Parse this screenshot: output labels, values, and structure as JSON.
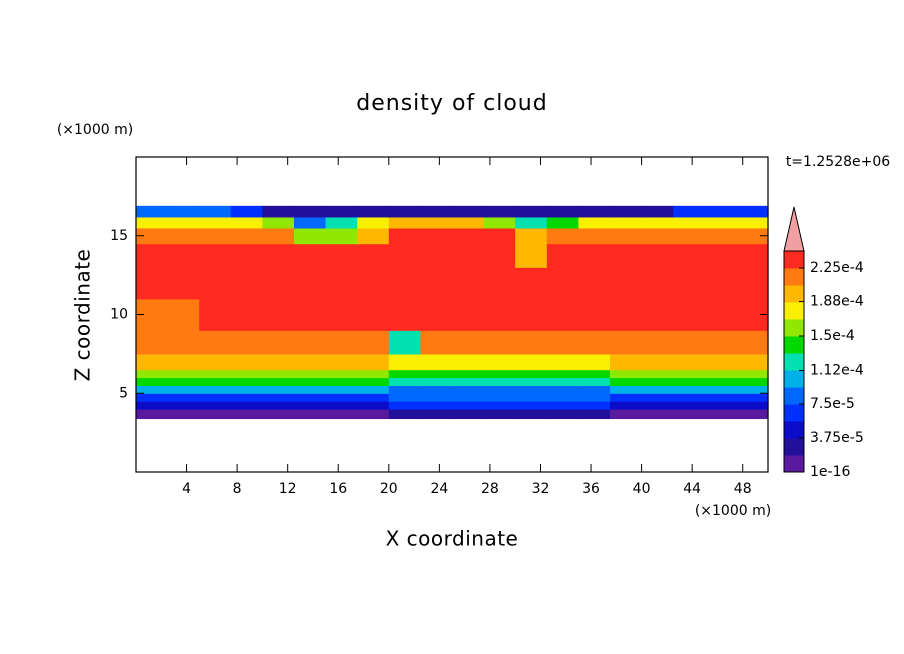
{
  "chart_data": {
    "type": "contour",
    "title": "density of cloud",
    "xlabel": "X coordinate",
    "ylabel": "Z coordinate",
    "x_unit": "(×1000 m)",
    "y_unit": "(×1000 m)",
    "time_label": "t=1.2528e+06",
    "xlim": [
      0,
      50
    ],
    "ylim": [
      0,
      20
    ],
    "xticks": [
      4,
      8,
      12,
      16,
      20,
      24,
      28,
      32,
      36,
      40,
      44,
      48
    ],
    "yticks": [
      5,
      10,
      15
    ],
    "x_edges": [
      0,
      2.5,
      5,
      7.5,
      10,
      12.5,
      15,
      17.5,
      20,
      22.5,
      25,
      27.5,
      30,
      32.5,
      35,
      37.5,
      40,
      42.5,
      45,
      47.5,
      50
    ],
    "z_edges": [
      3.4,
      4,
      4.5,
      5,
      5.5,
      6,
      6.5,
      7.5,
      9,
      11,
      13,
      14.5,
      15.5,
      16.2,
      16.9
    ],
    "values": [
      [
        1e-05,
        1e-05,
        1e-05,
        1e-05,
        1e-05,
        1e-05,
        1e-05,
        1e-05,
        3e-05,
        3e-05,
        3e-05,
        3e-05,
        3e-05,
        3e-05,
        3e-05,
        1e-05,
        1e-05,
        1e-05,
        1e-05,
        1e-05
      ],
      [
        4e-05,
        4e-05,
        4e-05,
        4e-05,
        4e-05,
        4e-05,
        4e-05,
        4e-05,
        6e-05,
        6e-05,
        6e-05,
        6e-05,
        6e-05,
        6e-05,
        6e-05,
        4e-05,
        4e-05,
        4e-05,
        4e-05,
        4e-05
      ],
      [
        7e-05,
        7e-05,
        7e-05,
        7e-05,
        7e-05,
        7e-05,
        7e-05,
        7e-05,
        8e-05,
        8e-05,
        8e-05,
        8e-05,
        8e-05,
        8e-05,
        8e-05,
        7e-05,
        7e-05,
        7e-05,
        7e-05,
        7e-05
      ],
      [
        0.0001,
        0.0001,
        0.0001,
        0.0001,
        0.0001,
        0.0001,
        0.0001,
        0.0001,
        9e-05,
        9e-05,
        9e-05,
        9e-05,
        9e-05,
        9e-05,
        9e-05,
        0.0001,
        0.0001,
        0.0001,
        0.0001,
        0.0001
      ],
      [
        0.000135,
        0.000135,
        0.000135,
        0.000135,
        0.000135,
        0.000135,
        0.000135,
        0.000135,
        0.000115,
        0.000115,
        0.000115,
        0.000115,
        0.000115,
        0.000115,
        0.000115,
        0.000135,
        0.000135,
        0.000135,
        0.000135,
        0.000135
      ],
      [
        0.00016,
        0.00016,
        0.00016,
        0.00016,
        0.00016,
        0.00016,
        0.00016,
        0.00016,
        0.000135,
        0.000135,
        0.000135,
        0.000135,
        0.000135,
        0.000135,
        0.000135,
        0.00016,
        0.00016,
        0.00016,
        0.00016,
        0.00016
      ],
      [
        0.00019,
        0.00019,
        0.00019,
        0.00019,
        0.00019,
        0.00019,
        0.00019,
        0.00019,
        0.000175,
        0.000175,
        0.000175,
        0.000175,
        0.000175,
        0.000175,
        0.000175,
        0.00019,
        0.00019,
        0.00019,
        0.00019,
        0.00019
      ],
      [
        0.00021,
        0.00021,
        0.00021,
        0.00021,
        0.00021,
        0.00021,
        0.00021,
        0.00021,
        0.00013,
        0.00021,
        0.00021,
        0.00021,
        0.00021,
        0.00021,
        0.00021,
        0.00021,
        0.00021,
        0.00021,
        0.00021,
        0.00021
      ],
      [
        0.00021,
        0.00021,
        0.00023,
        0.00023,
        0.00023,
        0.00023,
        0.00023,
        0.00023,
        0.00023,
        0.00023,
        0.00023,
        0.00023,
        0.00023,
        0.00023,
        0.00023,
        0.00023,
        0.00023,
        0.00023,
        0.00023,
        0.00023
      ],
      [
        0.00023,
        0.00023,
        0.00023,
        0.00023,
        0.00023,
        0.00023,
        0.00023,
        0.00023,
        0.00023,
        0.00023,
        0.00023,
        0.00023,
        0.00023,
        0.00023,
        0.00023,
        0.00023,
        0.00023,
        0.00023,
        0.00023,
        0.00023
      ],
      [
        0.00023,
        0.00023,
        0.00023,
        0.00023,
        0.00023,
        0.00023,
        0.00023,
        0.00023,
        0.00023,
        0.00023,
        0.00023,
        0.00023,
        0.0002,
        0.00023,
        0.00023,
        0.00023,
        0.00023,
        0.00023,
        0.00023,
        0.00023
      ],
      [
        0.00021,
        0.00021,
        0.00021,
        0.00021,
        0.00021,
        0.00015,
        0.00016,
        0.0002,
        0.00023,
        0.00023,
        0.00023,
        0.00023,
        0.00019,
        0.00021,
        0.00021,
        0.00021,
        0.00021,
        0.00021,
        0.00021,
        0.00021
      ],
      [
        0.00018,
        0.00018,
        0.00018,
        0.00018,
        0.00015,
        8e-05,
        0.00012,
        0.00017,
        0.00019,
        0.00019,
        0.00019,
        0.00016,
        0.00012,
        0.00014,
        0.00017,
        0.00017,
        0.00017,
        0.00017,
        0.00018,
        0.00018
      ],
      [
        8e-05,
        8e-05,
        8e-05,
        6e-05,
        2e-05,
        2e-05,
        2e-05,
        2e-05,
        2e-05,
        2e-05,
        2e-05,
        2e-05,
        2e-05,
        2e-05,
        2e-05,
        2e-05,
        2e-05,
        7e-05,
        7e-05,
        7e-05
      ]
    ],
    "levels": [
      1e-16,
      1.875e-05,
      3.75e-05,
      5.625e-05,
      7.5e-05,
      9.375e-05,
      0.0001125,
      0.00013125,
      0.00015,
      0.00016875,
      0.0001875,
      0.00020625,
      0.000225,
      0.00024375
    ],
    "colors": [
      "#5a1aa0",
      "#22109a",
      "#0c0cc8",
      "#0030ff",
      "#0068ff",
      "#00b0e8",
      "#00e0b0",
      "#00d800",
      "#90e800",
      "#f8f000",
      "#ffb800",
      "#ff7a10",
      "#ff2a20"
    ],
    "extend_color": "#f0a0a0",
    "colorbar_ticks": [
      {
        "value": 1e-16,
        "label": "1e-16"
      },
      {
        "value": 3.75e-05,
        "label": "3.75e-5"
      },
      {
        "value": 7.5e-05,
        "label": "7.5e-5"
      },
      {
        "value": 0.000112,
        "label": "1.12e-4"
      },
      {
        "value": 0.00015,
        "label": "1.5e-4"
      },
      {
        "value": 0.000188,
        "label": "1.88e-4"
      },
      {
        "value": 0.000225,
        "label": "2.25e-4"
      }
    ]
  }
}
